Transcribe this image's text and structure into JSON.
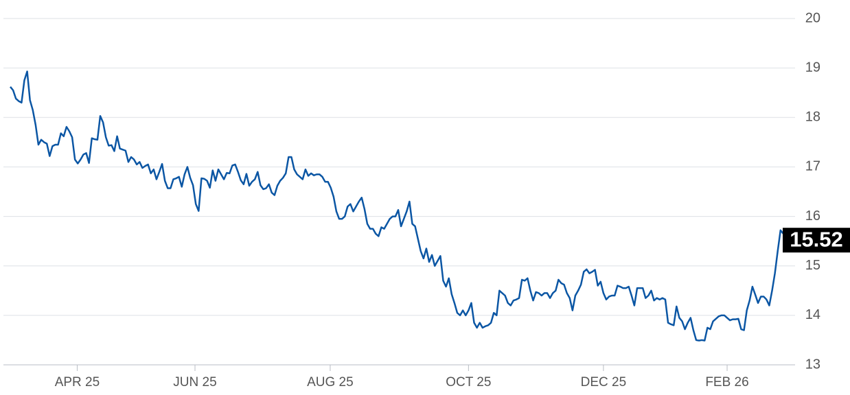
{
  "chart_data": {
    "type": "line",
    "color": "#0b56a4",
    "grid": true,
    "xlim": [
      0,
      276
    ],
    "xticks": [
      {
        "value": 23.8,
        "label": "APR 25"
      },
      {
        "value": 65.7,
        "label": "JUN 25"
      },
      {
        "value": 113.8,
        "label": "AUG 25"
      },
      {
        "value": 163,
        "label": "OCT 25"
      },
      {
        "value": 211,
        "label": "DEC 25"
      },
      {
        "value": 255,
        "label": "FEB 26"
      }
    ],
    "ylim": [
      13,
      20
    ],
    "yticks": [
      13,
      14,
      15,
      16,
      17,
      18,
      19,
      20
    ],
    "values": [
      18.62,
      18.55,
      18.38,
      18.33,
      18.3,
      18.75,
      18.93,
      18.35,
      18.15,
      17.85,
      17.45,
      17.55,
      17.5,
      17.47,
      17.22,
      17.42,
      17.45,
      17.45,
      17.68,
      17.62,
      17.81,
      17.72,
      17.6,
      17.15,
      17.07,
      17.15,
      17.25,
      17.28,
      17.08,
      17.58,
      17.56,
      17.55,
      18.03,
      17.9,
      17.6,
      17.43,
      17.44,
      17.32,
      17.62,
      17.37,
      17.35,
      17.33,
      17.1,
      17.2,
      17.15,
      17.05,
      17.1,
      16.98,
      17.02,
      17.05,
      16.87,
      16.95,
      16.75,
      16.9,
      17.06,
      16.72,
      16.57,
      16.57,
      16.75,
      16.77,
      16.8,
      16.6,
      16.85,
      17.0,
      16.78,
      16.63,
      16.25,
      16.11,
      16.77,
      16.76,
      16.72,
      16.58,
      16.93,
      16.72,
      16.95,
      16.85,
      16.75,
      16.88,
      16.87,
      17.03,
      17.05,
      16.9,
      16.73,
      16.65,
      16.86,
      16.62,
      16.7,
      16.75,
      16.9,
      16.63,
      16.55,
      16.57,
      16.65,
      16.48,
      16.43,
      16.62,
      16.72,
      16.78,
      16.87,
      17.2,
      17.2,
      16.95,
      16.85,
      16.8,
      16.75,
      16.95,
      16.82,
      16.87,
      16.83,
      16.85,
      16.85,
      16.8,
      16.7,
      16.7,
      16.58,
      16.4,
      16.1,
      15.95,
      15.95,
      16.0,
      16.2,
      16.25,
      16.1,
      16.2,
      16.3,
      16.38,
      16.15,
      15.85,
      15.75,
      15.75,
      15.65,
      15.6,
      15.78,
      15.75,
      15.85,
      15.95,
      16.0,
      16.0,
      16.13,
      15.8,
      15.95,
      16.1,
      16.3,
      15.85,
      15.8,
      15.55,
      15.3,
      15.15,
      15.35,
      15.08,
      15.22,
      15.0,
      15.1,
      15.2,
      14.7,
      14.58,
      14.75,
      14.43,
      14.25,
      14.05,
      14.0,
      14.1,
      14.0,
      14.1,
      14.25,
      13.85,
      13.75,
      13.85,
      13.75,
      13.78,
      13.8,
      13.85,
      14.05,
      14.0,
      14.5,
      14.45,
      14.4,
      14.25,
      14.2,
      14.3,
      14.32,
      14.35,
      14.72,
      14.7,
      14.75,
      14.5,
      14.3,
      14.47,
      14.45,
      14.4,
      14.45,
      14.45,
      14.35,
      14.45,
      14.5,
      14.72,
      14.65,
      14.62,
      14.45,
      14.35,
      14.1,
      14.4,
      14.5,
      14.62,
      14.88,
      14.93,
      14.85,
      14.88,
      14.92,
      14.6,
      14.68,
      14.45,
      14.32,
      14.38,
      14.4,
      14.4,
      14.6,
      14.58,
      14.55,
      14.55,
      14.58,
      14.4,
      14.2,
      14.55,
      14.55,
      14.55,
      14.35,
      14.4,
      14.5,
      14.3,
      14.35,
      14.32,
      14.35,
      14.32,
      13.85,
      13.82,
      13.8,
      14.18,
      13.95,
      13.88,
      13.72,
      13.85,
      13.95,
      13.7,
      13.5,
      13.49,
      13.5,
      13.49,
      13.75,
      13.72,
      13.88,
      13.93,
      13.98,
      14.0,
      14.0,
      13.95,
      13.9,
      13.92,
      13.92,
      13.93,
      13.72,
      13.7,
      14.1,
      14.3,
      14.58,
      14.42,
      14.25,
      14.38,
      14.38,
      14.32,
      14.2,
      14.5,
      14.85,
      15.3,
      15.72,
      15.65,
      15.52
    ]
  }
}
